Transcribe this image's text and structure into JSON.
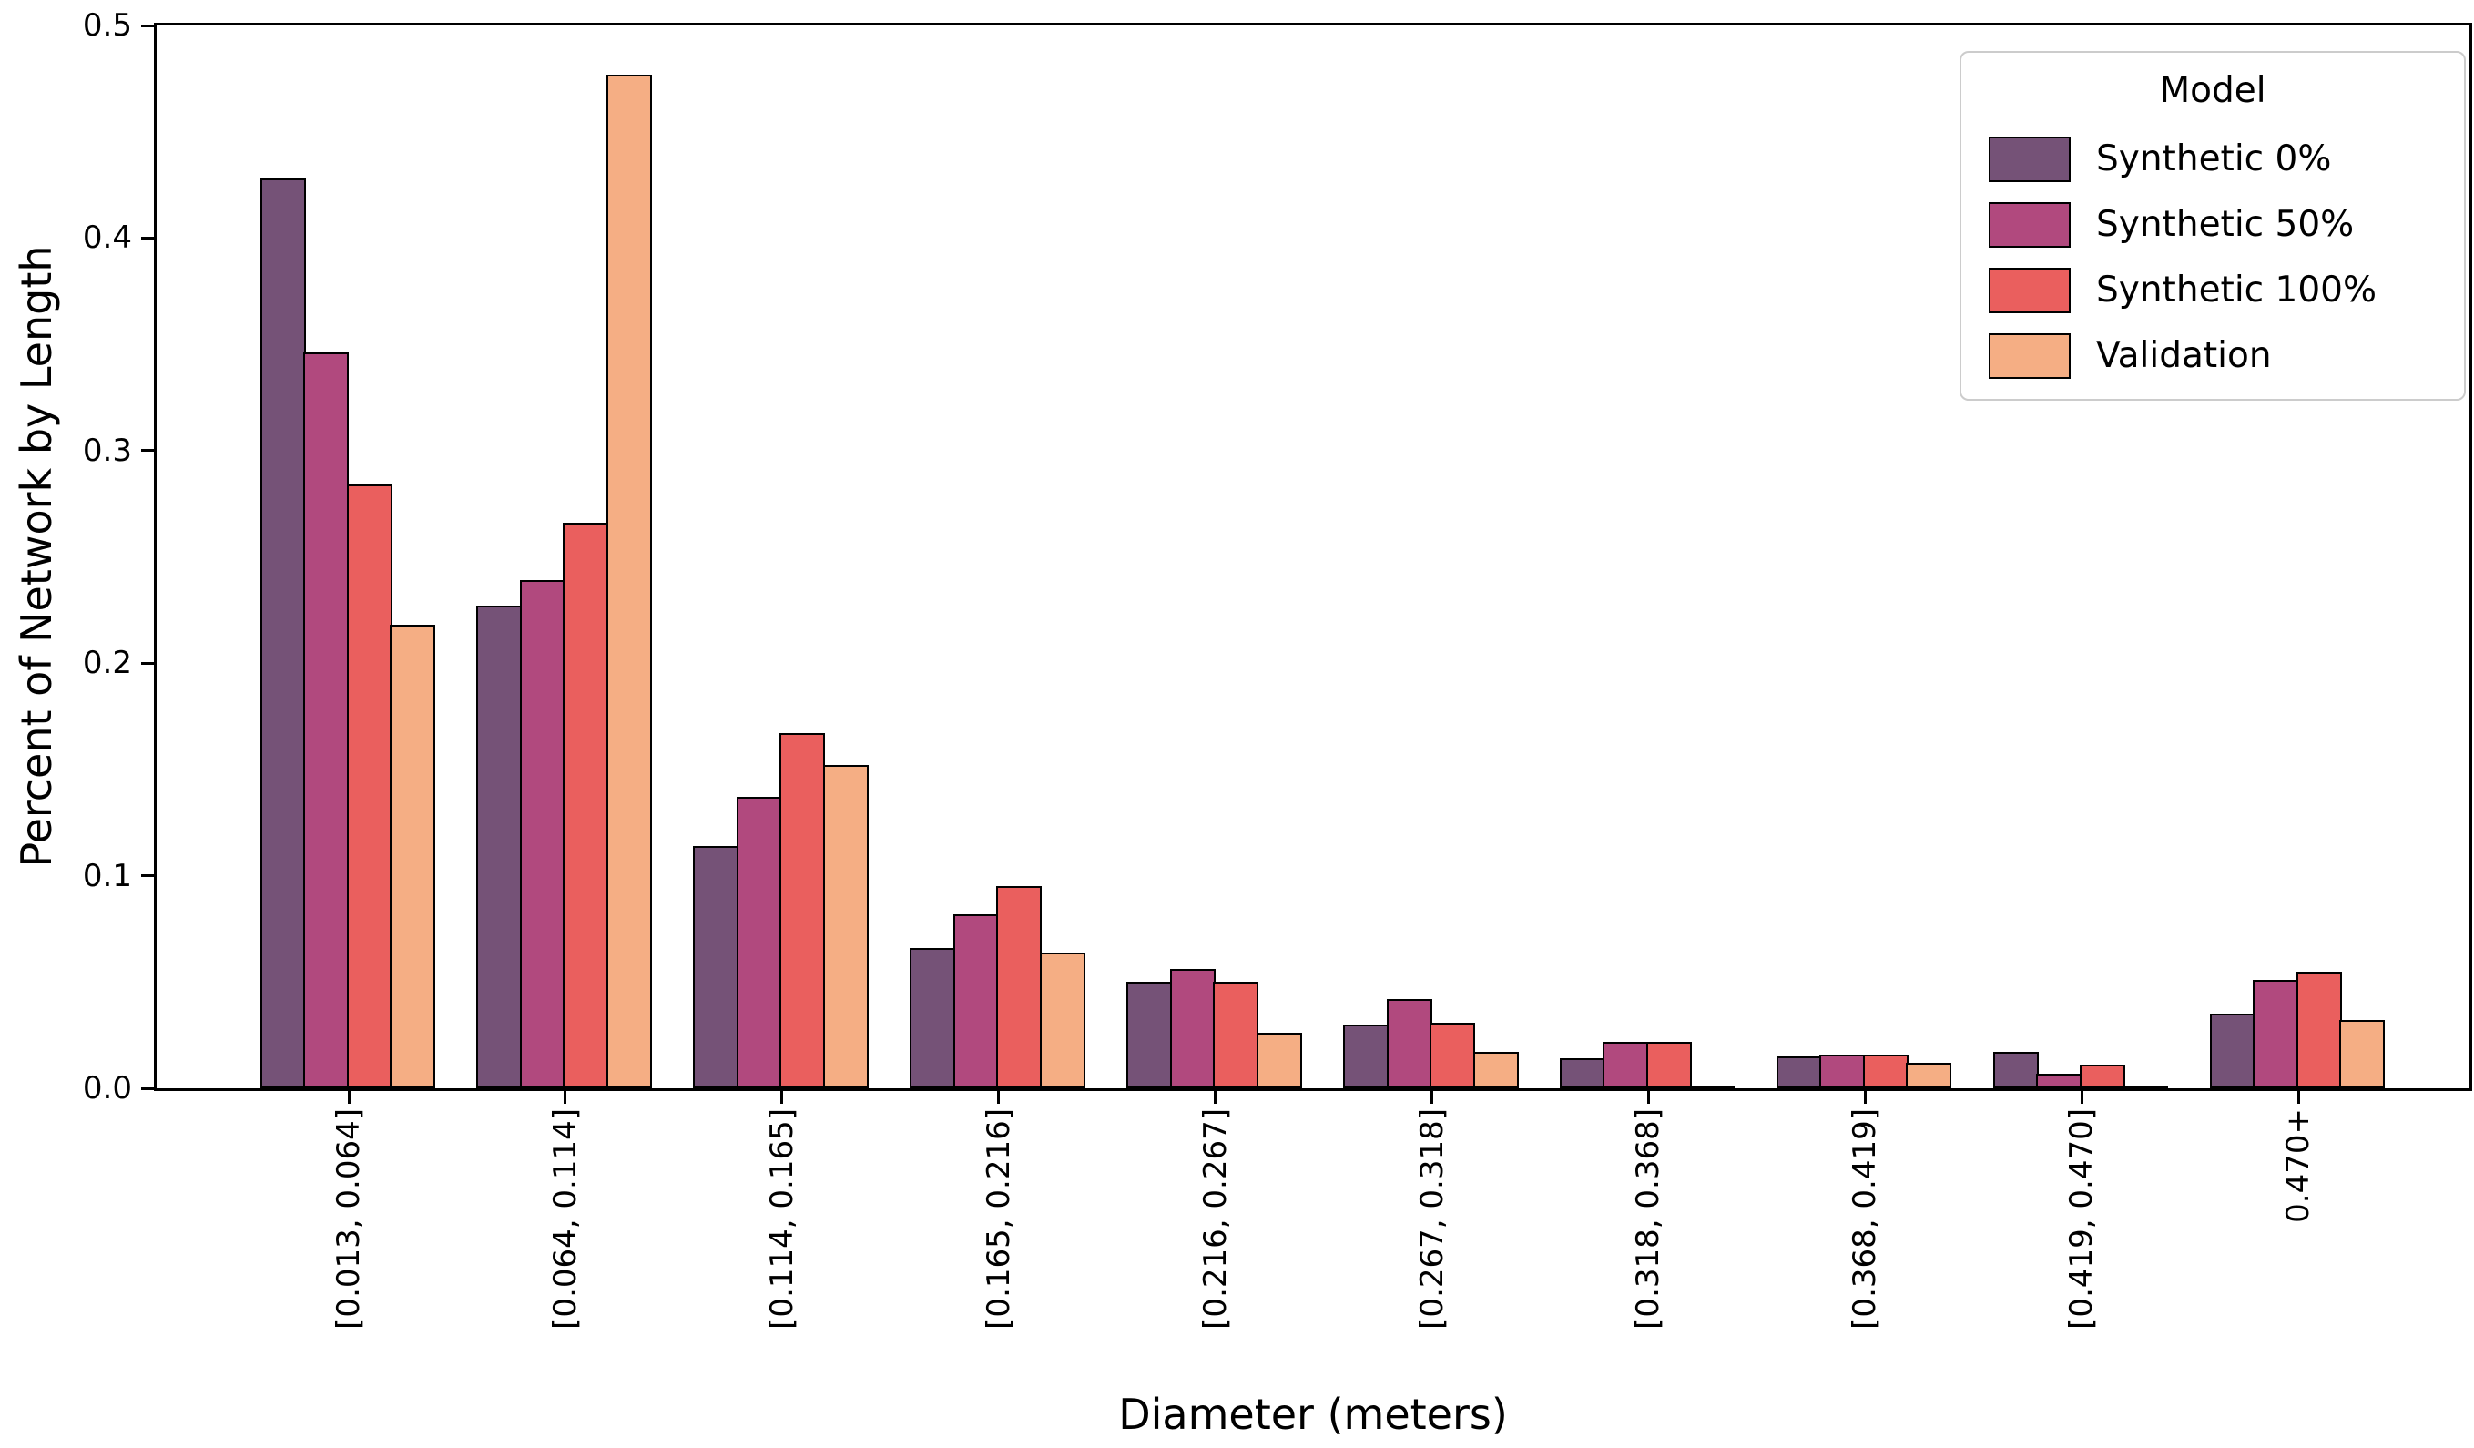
{
  "figure": {
    "background": "#ffffff",
    "xlabel": "Diameter (meters)",
    "ylabel": "Percent of Network by Length"
  },
  "legend": {
    "title": "Model",
    "position": "upper right"
  },
  "chart_data": {
    "type": "bar",
    "title": "",
    "xlabel": "Diameter (meters)",
    "ylabel": "Percent of Network by Length",
    "ylim": [
      0,
      0.5
    ],
    "yticks": [
      {
        "value": 0.0,
        "label": "0.0"
      },
      {
        "value": 0.1,
        "label": "0.1"
      },
      {
        "value": 0.2,
        "label": "0.2"
      },
      {
        "value": 0.3,
        "label": "0.3"
      },
      {
        "value": 0.4,
        "label": "0.4"
      },
      {
        "value": 0.5,
        "label": "0.5"
      }
    ],
    "grid": false,
    "legend_position": "upper right",
    "legend_title": "Model",
    "bar_edge_color": "#000000",
    "categories": [
      "[0.013, 0.064]",
      "[0.064, 0.114]",
      "[0.114, 0.165]",
      "[0.165, 0.216]",
      "[0.216, 0.267]",
      "[0.267, 0.318]",
      "[0.318, 0.368]",
      "[0.368, 0.419]",
      "[0.419, 0.470]",
      "0.470+"
    ],
    "series": [
      {
        "name": "Synthetic 0%",
        "color": "#755277",
        "values": [
          0.428,
          0.227,
          0.114,
          0.066,
          0.05,
          0.03,
          0.014,
          0.015,
          0.017,
          0.035
        ]
      },
      {
        "name": "Synthetic 50%",
        "color": "#B1497E",
        "values": [
          0.346,
          0.239,
          0.137,
          0.082,
          0.056,
          0.042,
          0.022,
          0.016,
          0.007,
          0.051
        ]
      },
      {
        "name": "Synthetic 100%",
        "color": "#EA5F5E",
        "values": [
          0.284,
          0.266,
          0.167,
          0.095,
          0.05,
          0.031,
          0.022,
          0.016,
          0.011,
          0.055
        ]
      },
      {
        "name": "Validation",
        "color": "#F5AE84",
        "values": [
          0.218,
          0.477,
          0.152,
          0.064,
          0.026,
          0.017,
          0.001,
          0.012,
          0.001,
          0.032
        ]
      }
    ]
  }
}
